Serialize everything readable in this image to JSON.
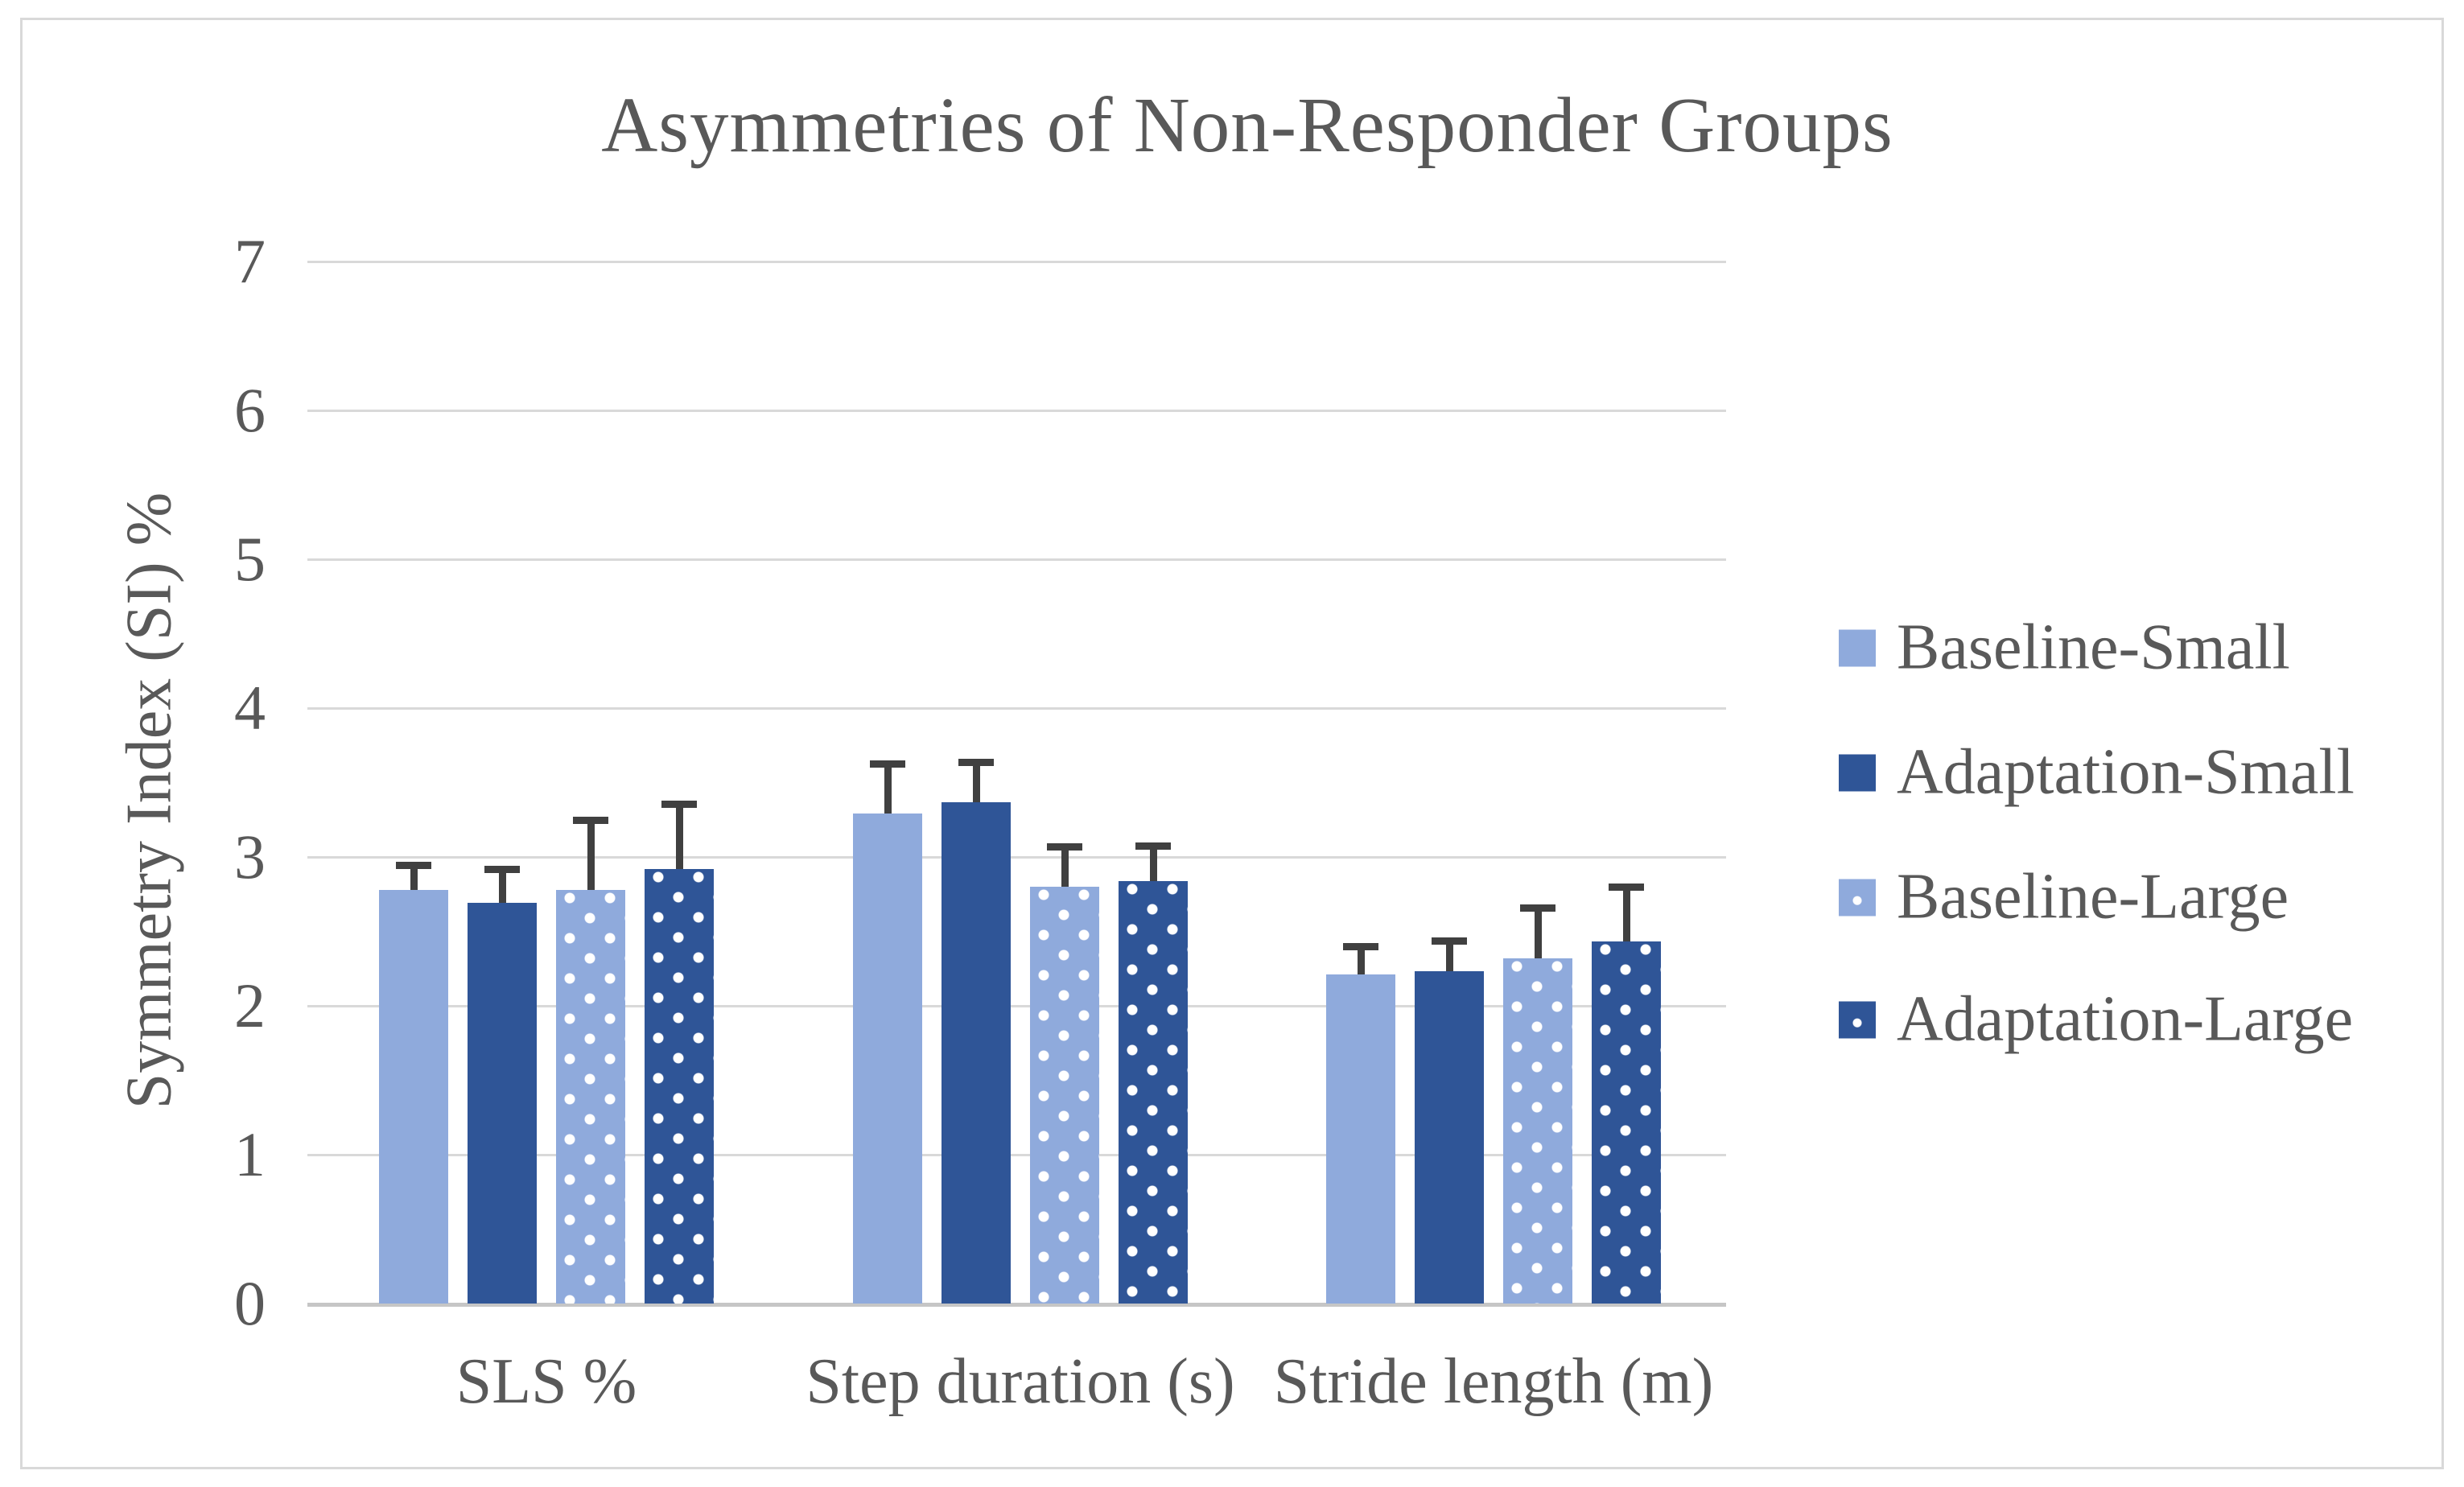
{
  "title": "Asymmetries of Non-Responder Groups",
  "y_axis": {
    "label": "Symmetry Index (SI) %",
    "ticks": [
      "0",
      "1",
      "2",
      "3",
      "4",
      "5",
      "6",
      "7"
    ]
  },
  "x_axis": {
    "categories": [
      "SLS %",
      "Step duration (s)",
      "Stride length (m)"
    ]
  },
  "legend": {
    "items": [
      "Baseline-Small",
      "Adaptation-Small",
      "Baseline-Large",
      "Adaptation-Large"
    ]
  },
  "colors": {
    "series_light_blue": "#8FAADC",
    "series_dark_blue": "#2F5597",
    "gridline": "#D9D9D9",
    "axis_line": "#C6C6C6",
    "error_bar": "#404040",
    "text": "#595959",
    "frame_border": "#D9D9D9"
  },
  "chart_data": {
    "type": "bar",
    "title": "Asymmetries of Non-Responder Groups",
    "xlabel": "",
    "ylabel": "Symmetry Index (SI) %",
    "ylim": [
      0,
      7
    ],
    "ytick_interval": 1,
    "grid": true,
    "legend_position": "right",
    "categories": [
      "SLS %",
      "Step duration (s)",
      "Stride length (m)"
    ],
    "series": [
      {
        "name": "Baseline-Small",
        "style": "solid-light",
        "color": "#8FAADC",
        "pattern": "solid",
        "values": [
          2.78,
          3.29,
          2.21
        ],
        "error_up": [
          0.19,
          0.36,
          0.21
        ]
      },
      {
        "name": "Adaptation-Small",
        "style": "solid-dark",
        "color": "#2F5597",
        "pattern": "solid",
        "values": [
          2.69,
          3.37,
          2.23
        ],
        "error_up": [
          0.25,
          0.29,
          0.23
        ]
      },
      {
        "name": "Baseline-Large",
        "style": "dotted-light",
        "color": "#8FAADC",
        "pattern": "white-dots",
        "values": [
          2.78,
          2.8,
          2.32
        ],
        "error_up": [
          0.49,
          0.29,
          0.36
        ]
      },
      {
        "name": "Adaptation-Large",
        "style": "dotted-dark",
        "color": "#2F5597",
        "pattern": "white-dots",
        "values": [
          2.92,
          2.84,
          2.43
        ],
        "error_up": [
          0.46,
          0.26,
          0.39
        ]
      }
    ]
  }
}
